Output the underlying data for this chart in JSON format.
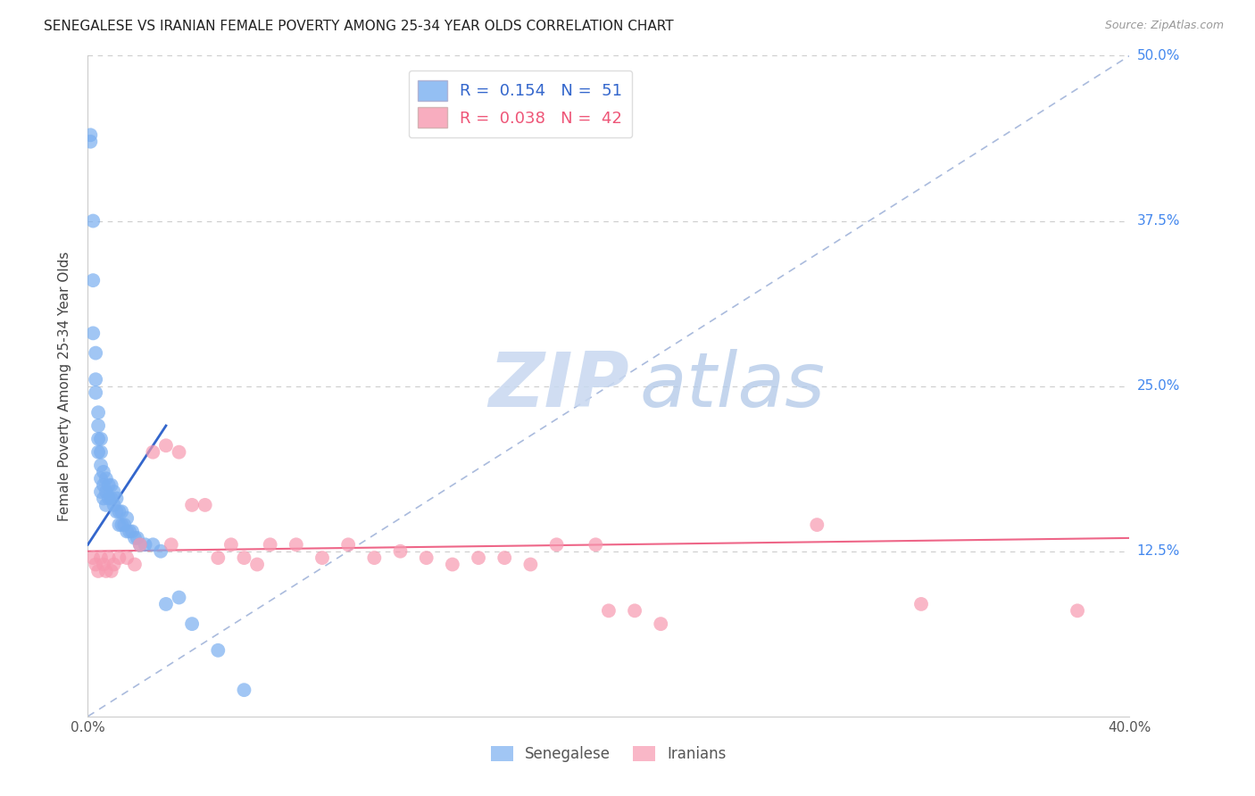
{
  "title": "SENEGALESE VS IRANIAN FEMALE POVERTY AMONG 25-34 YEAR OLDS CORRELATION CHART",
  "source": "Source: ZipAtlas.com",
  "ylabel": "Female Poverty Among 25-34 Year Olds",
  "xlim": [
    0.0,
    0.4
  ],
  "ylim": [
    0.0,
    0.5
  ],
  "grid_color": "#cccccc",
  "senegalese_color": "#7aaff0",
  "iranian_color": "#f799b0",
  "senegalese_line_color": "#3366cc",
  "iranian_line_color": "#ee6688",
  "diagonal_color": "#aabbdd",
  "senegalese_R": 0.154,
  "senegalese_N": 51,
  "iranian_R": 0.038,
  "iranian_N": 42,
  "legend_label_senegalese": "Senegalese",
  "legend_label_iranian": "Iranians",
  "watermark_zip": "ZIP",
  "watermark_atlas": "atlas",
  "title_fontsize": 11,
  "source_fontsize": 9,
  "tick_fontsize": 11,
  "ylabel_fontsize": 11,
  "senegalese_x": [
    0.001,
    0.001,
    0.002,
    0.002,
    0.002,
    0.003,
    0.003,
    0.003,
    0.004,
    0.004,
    0.004,
    0.004,
    0.005,
    0.005,
    0.005,
    0.005,
    0.005,
    0.006,
    0.006,
    0.006,
    0.007,
    0.007,
    0.007,
    0.008,
    0.008,
    0.009,
    0.009,
    0.01,
    0.01,
    0.011,
    0.011,
    0.012,
    0.012,
    0.013,
    0.013,
    0.014,
    0.015,
    0.015,
    0.016,
    0.017,
    0.018,
    0.019,
    0.02,
    0.022,
    0.025,
    0.028,
    0.03,
    0.035,
    0.04,
    0.05,
    0.06
  ],
  "senegalese_y": [
    0.44,
    0.435,
    0.375,
    0.33,
    0.29,
    0.275,
    0.255,
    0.245,
    0.23,
    0.22,
    0.21,
    0.2,
    0.21,
    0.2,
    0.19,
    0.18,
    0.17,
    0.185,
    0.175,
    0.165,
    0.18,
    0.17,
    0.16,
    0.175,
    0.165,
    0.175,
    0.165,
    0.17,
    0.16,
    0.165,
    0.155,
    0.155,
    0.145,
    0.155,
    0.145,
    0.145,
    0.15,
    0.14,
    0.14,
    0.14,
    0.135,
    0.135,
    0.13,
    0.13,
    0.13,
    0.125,
    0.085,
    0.09,
    0.07,
    0.05,
    0.02
  ],
  "senegalese_line_x": [
    0.0,
    0.03
  ],
  "senegalese_line_y": [
    0.13,
    0.22
  ],
  "iranian_x": [
    0.002,
    0.003,
    0.004,
    0.005,
    0.006,
    0.007,
    0.008,
    0.009,
    0.01,
    0.012,
    0.015,
    0.018,
    0.02,
    0.025,
    0.03,
    0.032,
    0.035,
    0.04,
    0.045,
    0.05,
    0.055,
    0.06,
    0.065,
    0.07,
    0.08,
    0.09,
    0.1,
    0.11,
    0.12,
    0.13,
    0.14,
    0.15,
    0.16,
    0.17,
    0.18,
    0.195,
    0.2,
    0.21,
    0.22,
    0.28,
    0.32,
    0.38
  ],
  "iranian_y": [
    0.12,
    0.115,
    0.11,
    0.12,
    0.115,
    0.11,
    0.12,
    0.11,
    0.115,
    0.12,
    0.12,
    0.115,
    0.13,
    0.2,
    0.205,
    0.13,
    0.2,
    0.16,
    0.16,
    0.12,
    0.13,
    0.12,
    0.115,
    0.13,
    0.13,
    0.12,
    0.13,
    0.12,
    0.125,
    0.12,
    0.115,
    0.12,
    0.12,
    0.115,
    0.13,
    0.13,
    0.08,
    0.08,
    0.07,
    0.145,
    0.085,
    0.08
  ],
  "iranian_line_x": [
    0.0,
    0.4
  ],
  "iranian_line_y": [
    0.125,
    0.135
  ]
}
